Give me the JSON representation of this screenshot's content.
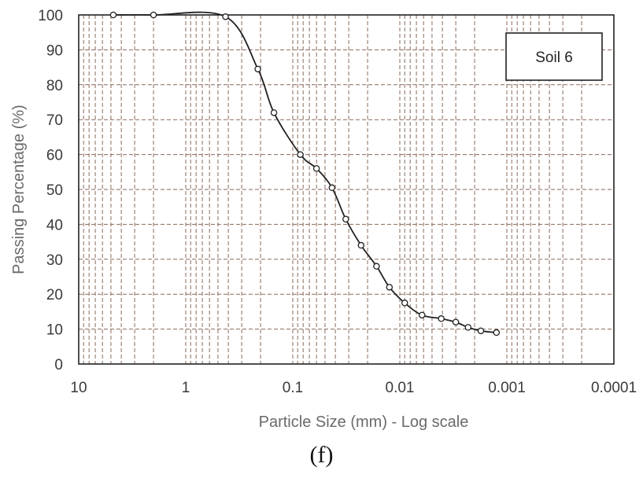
{
  "chart_data": {
    "type": "scatter",
    "xlabel": "Particle Size (mm) - Log scale",
    "ylabel": "Passing Percentage (%)",
    "x_scale": "log",
    "x_reversed": true,
    "xlim": [
      10,
      0.0001
    ],
    "ylim": [
      0,
      100
    ],
    "x_ticks": [
      10,
      1,
      0.1,
      0.01,
      0.001,
      0.0001
    ],
    "x_tick_labels": [
      "10",
      "1",
      "0.1",
      "0.01",
      "0.001",
      "0.0001"
    ],
    "y_ticks": [
      0,
      10,
      20,
      30,
      40,
      50,
      60,
      70,
      80,
      90,
      100
    ],
    "y_tick_labels": [
      "0",
      "10",
      "20",
      "30",
      "40",
      "50",
      "60",
      "70",
      "80",
      "90",
      "100"
    ],
    "grid": true,
    "legend_placement": "top-right",
    "legend_text": "Soil 6",
    "series": [
      {
        "marker": "open-circle",
        "line": "smooth",
        "x": [
          4.75,
          2.0,
          0.425,
          0.212,
          0.15,
          0.085,
          0.06,
          0.043,
          0.032,
          0.023,
          0.0165,
          0.0125,
          0.009,
          0.0062,
          0.0041,
          0.003,
          0.0023,
          0.00175,
          0.00125
        ],
        "y": [
          100,
          100,
          99.5,
          84.5,
          72,
          60,
          56,
          50.5,
          41.5,
          34,
          28,
          22,
          17.5,
          14,
          13,
          12,
          10.5,
          9.5,
          9
        ]
      }
    ]
  },
  "panel_label": "(f)"
}
